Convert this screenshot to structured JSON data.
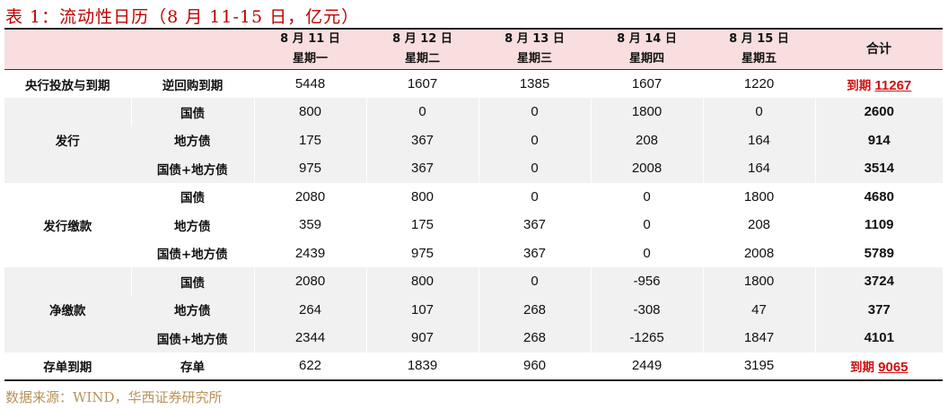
{
  "title": "表 1：流动性日历（8 月 11-15 日，亿元）",
  "header": {
    "days": [
      {
        "date": "8 月 11 日",
        "weekday": "星期一"
      },
      {
        "date": "8 月 12 日",
        "weekday": "星期二"
      },
      {
        "date": "8 月 13 日",
        "weekday": "星期三"
      },
      {
        "date": "8 月 14 日",
        "weekday": "星期四"
      },
      {
        "date": "8 月 15 日",
        "weekday": "星期五"
      }
    ],
    "total": "合计"
  },
  "rows": {
    "central": {
      "group": "央行投放与到期",
      "label": "逆回购到期",
      "values": [
        "5448",
        "1607",
        "1385",
        "1607",
        "1220"
      ],
      "total_prefix": "到期",
      "total": "11267"
    },
    "issue": {
      "group": "发行",
      "items": [
        {
          "label": "国债",
          "values": [
            "800",
            "0",
            "0",
            "1800",
            "0"
          ],
          "total": "2600"
        },
        {
          "label": "地方债",
          "values": [
            "175",
            "367",
            "0",
            "208",
            "164"
          ],
          "total": "914"
        },
        {
          "label": "国债+地方债",
          "values": [
            "975",
            "367",
            "0",
            "2008",
            "164"
          ],
          "total": "3514"
        }
      ]
    },
    "payment": {
      "group": "发行缴款",
      "items": [
        {
          "label": "国债",
          "values": [
            "2080",
            "800",
            "0",
            "0",
            "1800"
          ],
          "total": "4680"
        },
        {
          "label": "地方债",
          "values": [
            "359",
            "175",
            "367",
            "0",
            "208"
          ],
          "total": "1109"
        },
        {
          "label": "国债+地方债",
          "values": [
            "2439",
            "975",
            "367",
            "0",
            "2008"
          ],
          "total": "5789"
        }
      ]
    },
    "net": {
      "group": "净缴款",
      "items": [
        {
          "label": "国债",
          "values": [
            "2080",
            "800",
            "0",
            "-956",
            "1800"
          ],
          "total": "3724"
        },
        {
          "label": "地方债",
          "values": [
            "264",
            "107",
            "268",
            "-308",
            "47"
          ],
          "total": "377"
        },
        {
          "label": "国债+地方债",
          "values": [
            "2344",
            "907",
            "268",
            "-1265",
            "1847"
          ],
          "total": "4101"
        }
      ]
    },
    "cd": {
      "group": "存单到期",
      "label": "存单",
      "values": [
        "622",
        "1839",
        "960",
        "2449",
        "3195"
      ],
      "total_prefix": "到期",
      "total": "9065"
    }
  },
  "source": "数据来源：WIND，华西证券研究所",
  "colors": {
    "title": "#c00000",
    "header_bg": "#f8dede",
    "band_bg": "#f1f1f1",
    "highlight": "#d01010",
    "source": "#b8935a"
  }
}
